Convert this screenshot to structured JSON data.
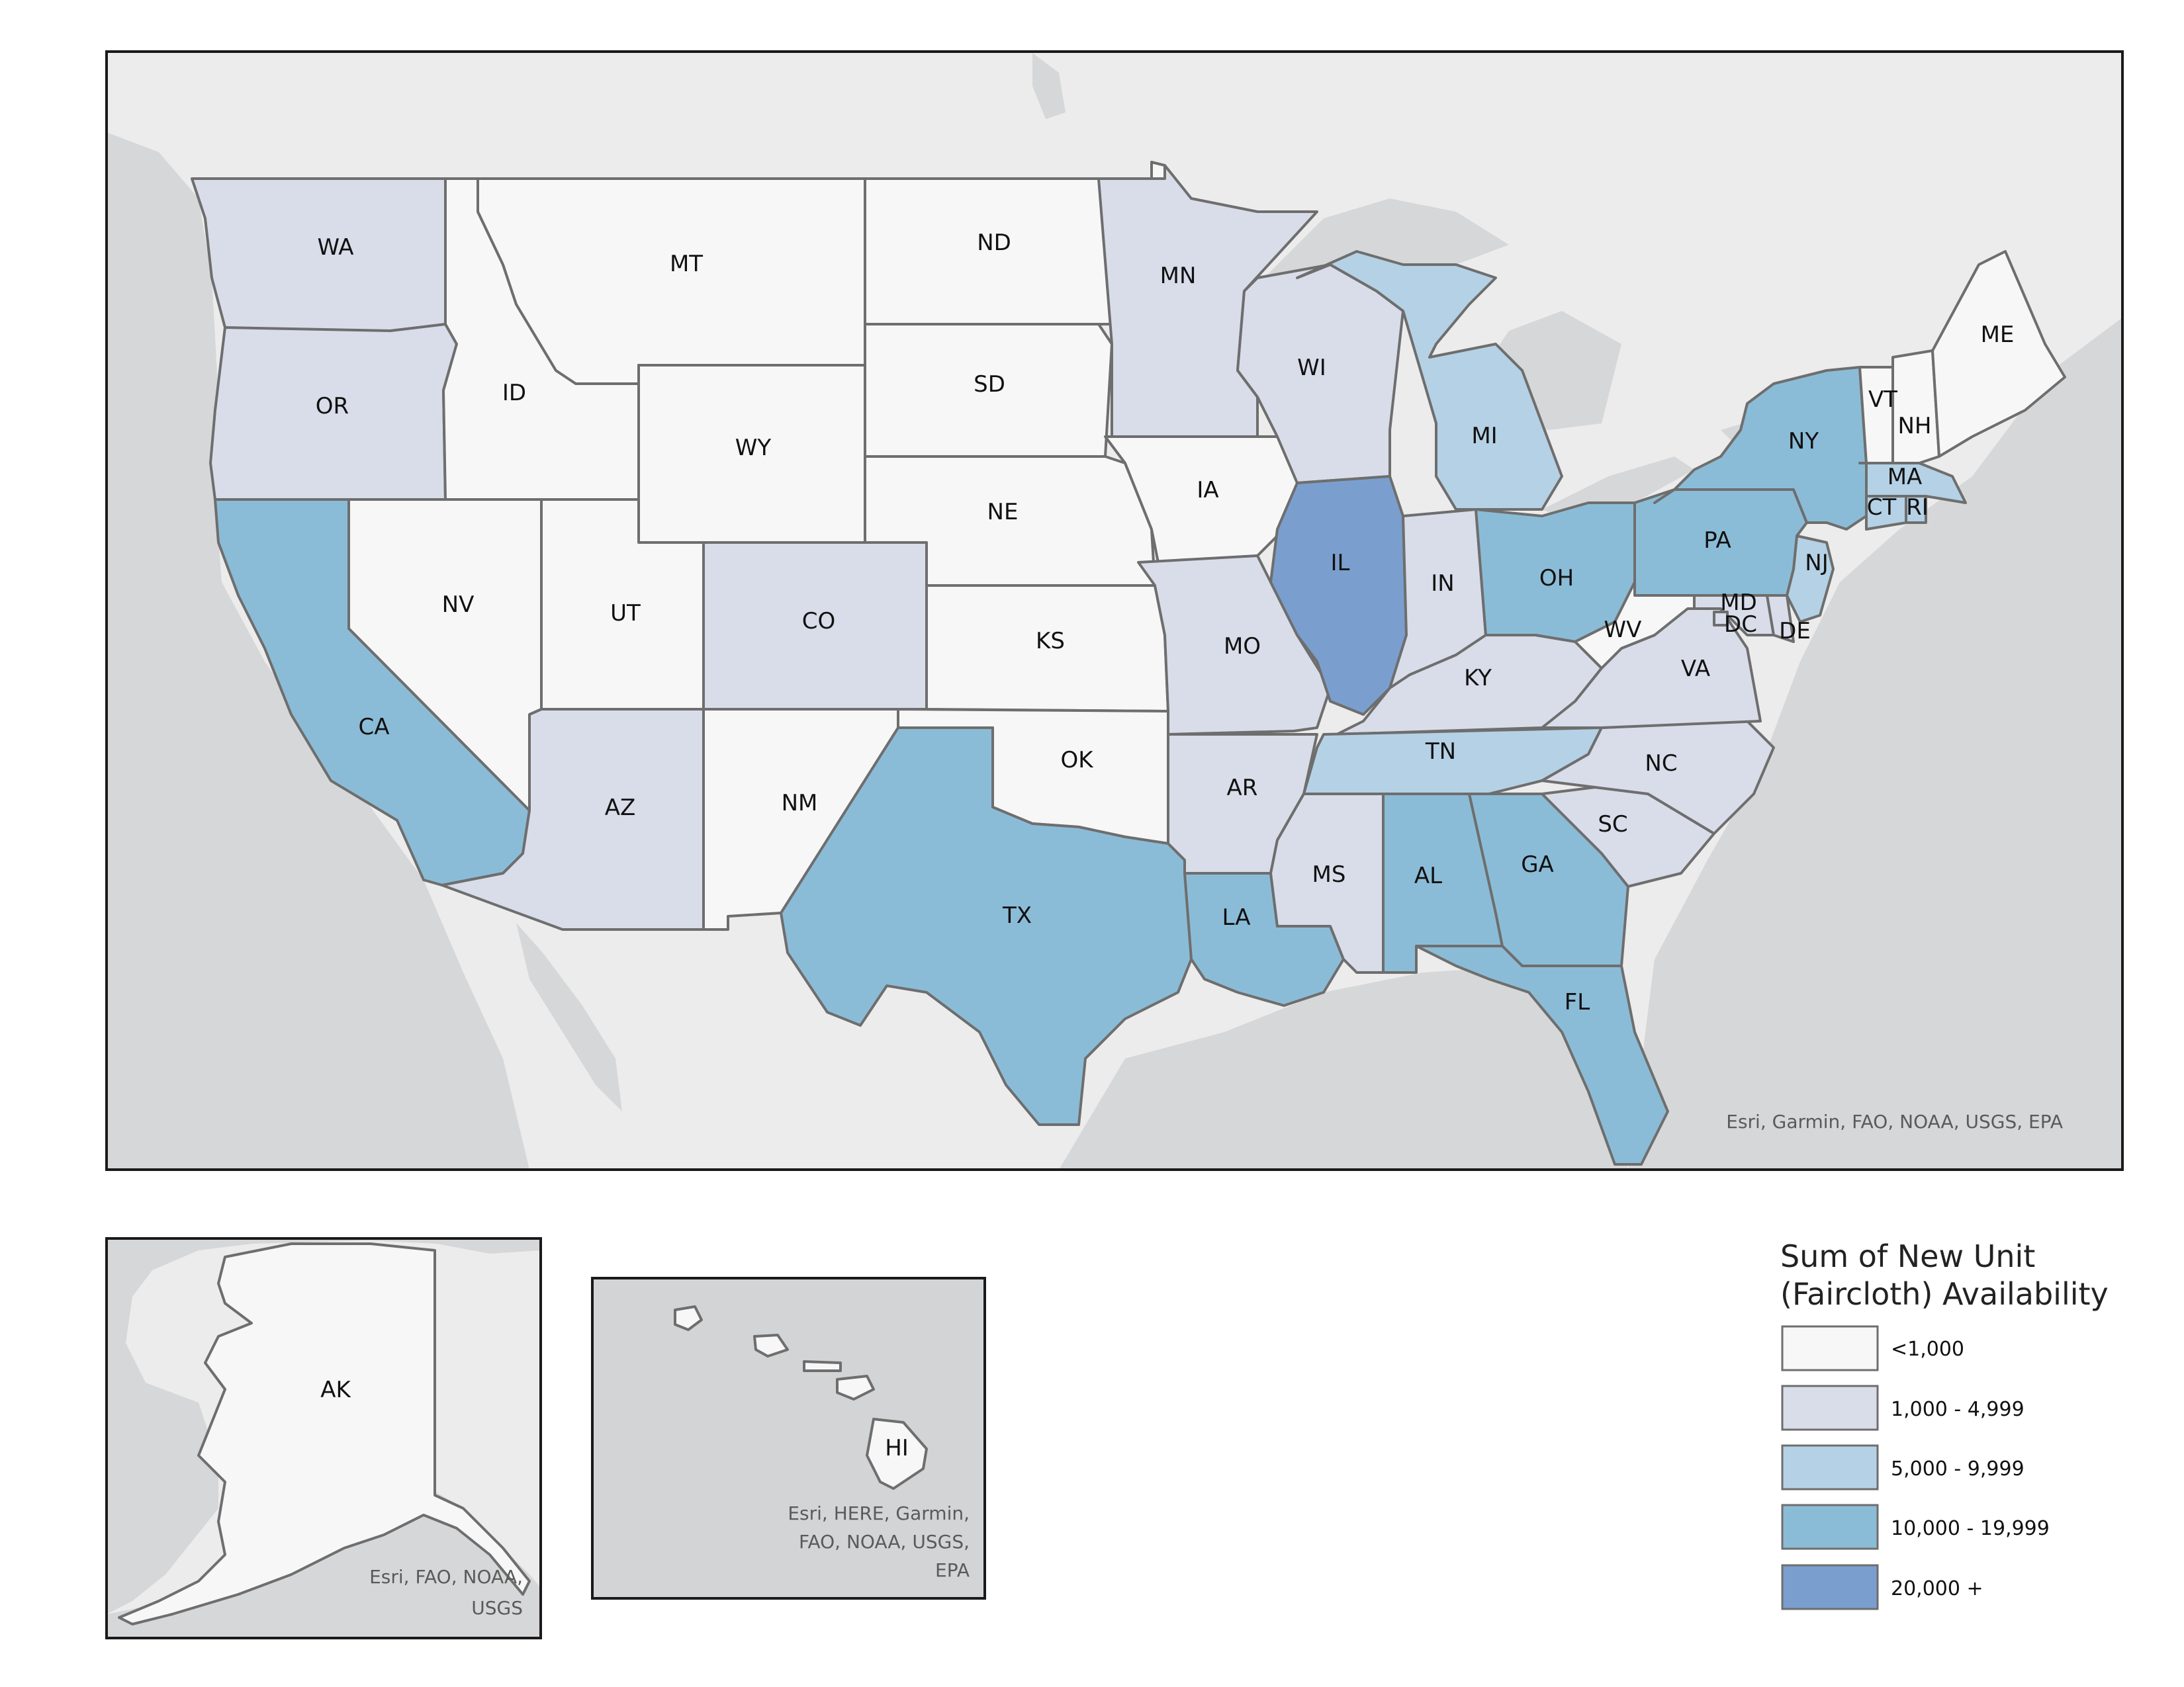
{
  "colors": {
    "c0": "#f7f7f7",
    "c1": "#d8dde9",
    "c2": "#b5d1e5",
    "c3": "#8bbcd7",
    "c4": "#7a9fcf",
    "water": "#d6d7d8",
    "land": "#ececec"
  },
  "states": [
    {
      "abbr": "WA",
      "cls": "c1"
    },
    {
      "abbr": "OR",
      "cls": "c1"
    },
    {
      "abbr": "CA",
      "cls": "c3"
    },
    {
      "abbr": "ID",
      "cls": "c0"
    },
    {
      "abbr": "NV",
      "cls": "c0"
    },
    {
      "abbr": "MT",
      "cls": "c0"
    },
    {
      "abbr": "WY",
      "cls": "c0"
    },
    {
      "abbr": "UT",
      "cls": "c0"
    },
    {
      "abbr": "AZ",
      "cls": "c1"
    },
    {
      "abbr": "CO",
      "cls": "c1"
    },
    {
      "abbr": "NM",
      "cls": "c0"
    },
    {
      "abbr": "ND",
      "cls": "c0"
    },
    {
      "abbr": "SD",
      "cls": "c0"
    },
    {
      "abbr": "NE",
      "cls": "c0"
    },
    {
      "abbr": "KS",
      "cls": "c0"
    },
    {
      "abbr": "OK",
      "cls": "c0"
    },
    {
      "abbr": "TX",
      "cls": "c3"
    },
    {
      "abbr": "MN",
      "cls": "c1"
    },
    {
      "abbr": "IA",
      "cls": "c0"
    },
    {
      "abbr": "MO",
      "cls": "c1"
    },
    {
      "abbr": "AR",
      "cls": "c1"
    },
    {
      "abbr": "LA",
      "cls": "c3"
    },
    {
      "abbr": "WI",
      "cls": "c1"
    },
    {
      "abbr": "IL",
      "cls": "c4"
    },
    {
      "abbr": "MI",
      "cls": "c2"
    },
    {
      "abbr": "IN",
      "cls": "c1"
    },
    {
      "abbr": "OH",
      "cls": "c3"
    },
    {
      "abbr": "KY",
      "cls": "c1"
    },
    {
      "abbr": "TN",
      "cls": "c2"
    },
    {
      "abbr": "MS",
      "cls": "c1"
    },
    {
      "abbr": "AL",
      "cls": "c3"
    },
    {
      "abbr": "GA",
      "cls": "c3"
    },
    {
      "abbr": "FL",
      "cls": "c3"
    },
    {
      "abbr": "SC",
      "cls": "c1"
    },
    {
      "abbr": "NC",
      "cls": "c1"
    },
    {
      "abbr": "VA",
      "cls": "c1"
    },
    {
      "abbr": "WV",
      "cls": "c0"
    },
    {
      "abbr": "MD",
      "cls": "c1"
    },
    {
      "abbr": "DC",
      "cls": "c1"
    },
    {
      "abbr": "DE",
      "cls": "c1"
    },
    {
      "abbr": "NJ",
      "cls": "c2"
    },
    {
      "abbr": "PA",
      "cls": "c3"
    },
    {
      "abbr": "NY",
      "cls": "c3"
    },
    {
      "abbr": "CT",
      "cls": "c2"
    },
    {
      "abbr": "RI",
      "cls": "c2"
    },
    {
      "abbr": "MA",
      "cls": "c2"
    },
    {
      "abbr": "VT",
      "cls": "c0"
    },
    {
      "abbr": "NH",
      "cls": "c0"
    },
    {
      "abbr": "ME",
      "cls": "c0"
    },
    {
      "abbr": "AK",
      "cls": "c0"
    },
    {
      "abbr": "HI",
      "cls": "c0"
    }
  ],
  "attribution": {
    "main": "Esri, Garmin, FAO, NOAA, USGS, EPA",
    "alaska_line1": "Esri, FAO, NOAA,",
    "alaska_line2": "USGS",
    "hawaii_line1": "Esri, HERE, Garmin,",
    "hawaii_line2": "FAO, NOAA, USGS,",
    "hawaii_line3": "EPA"
  },
  "legend": {
    "title_line1": "Sum of New Unit",
    "title_line2": "(Faircloth) Availability",
    "items": [
      {
        "label": "<1,000",
        "cls": "c0"
      },
      {
        "label": "1,000 - 4,999",
        "cls": "c1"
      },
      {
        "label": "5,000 - 9,999",
        "cls": "c2"
      },
      {
        "label": "10,000 - 19,999",
        "cls": "c3"
      },
      {
        "label": "20,000 +",
        "cls": "c4"
      }
    ]
  }
}
